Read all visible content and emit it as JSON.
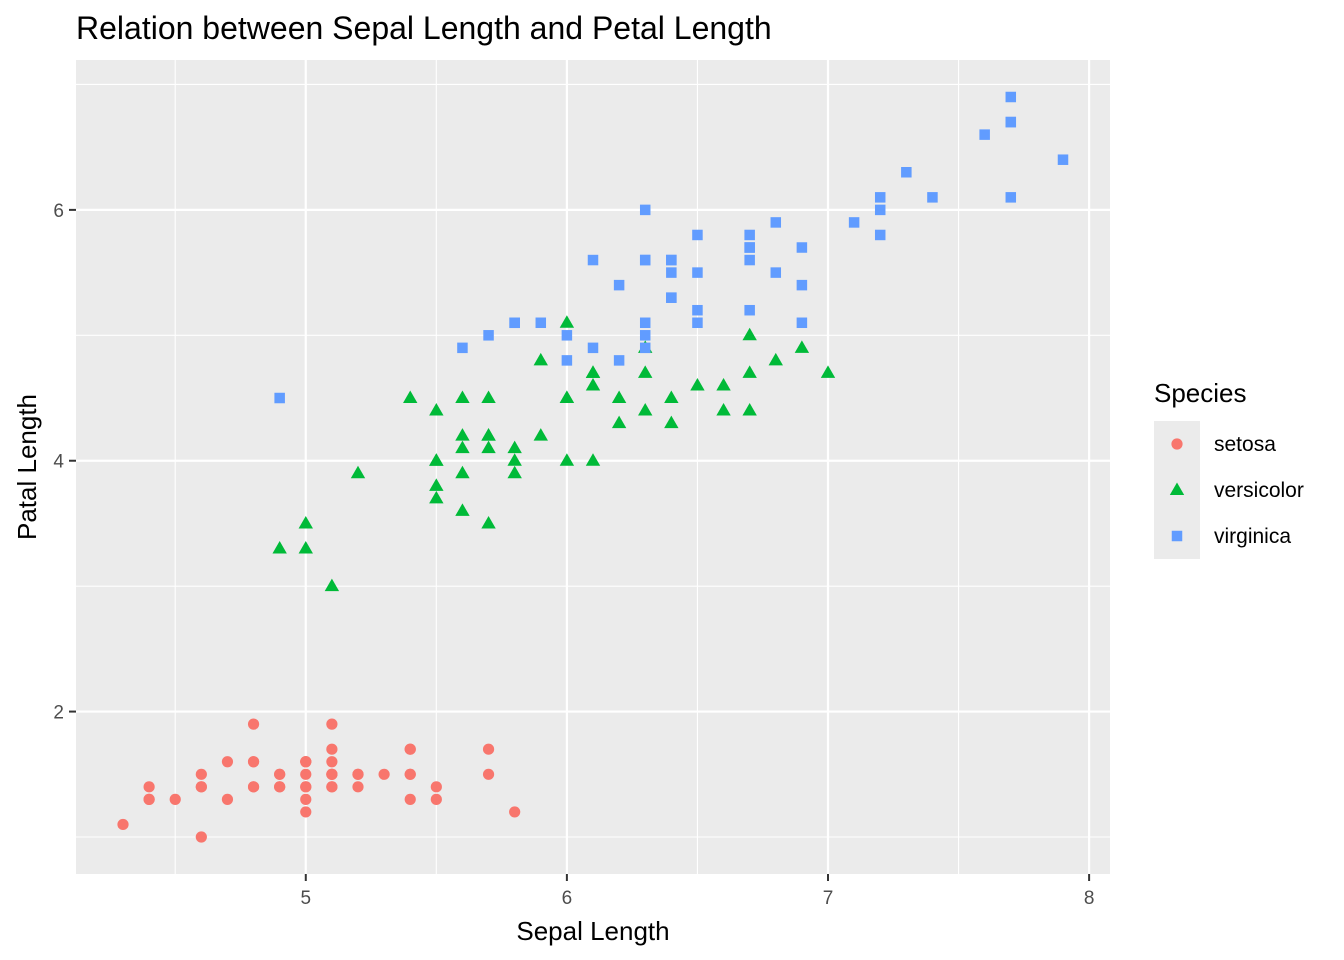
{
  "chart_data": {
    "type": "scatter",
    "title": "Relation between Sepal Length and Petal Length",
    "xlabel": "Sepal Length",
    "ylabel": "Patal Length",
    "xlim": [
      4.12,
      8.08
    ],
    "ylim": [
      0.705,
      7.195
    ],
    "x_ticks": [
      5,
      6,
      7,
      8
    ],
    "x_tick_labels": [
      "5",
      "6",
      "7",
      "8"
    ],
    "y_ticks": [
      2,
      4,
      6
    ],
    "y_tick_labels": [
      "2",
      "4",
      "6"
    ],
    "grid": true,
    "legend": {
      "title": "Species",
      "position": "right"
    },
    "series": [
      {
        "name": "setosa",
        "color": "#F8766D",
        "shape": "circle",
        "points": [
          [
            5.1,
            1.4
          ],
          [
            4.9,
            1.4
          ],
          [
            4.7,
            1.3
          ],
          [
            4.6,
            1.5
          ],
          [
            5.0,
            1.4
          ],
          [
            5.4,
            1.7
          ],
          [
            4.6,
            1.4
          ],
          [
            5.0,
            1.5
          ],
          [
            4.4,
            1.4
          ],
          [
            4.9,
            1.5
          ],
          [
            5.4,
            1.5
          ],
          [
            4.8,
            1.6
          ],
          [
            4.8,
            1.4
          ],
          [
            4.3,
            1.1
          ],
          [
            5.8,
            1.2
          ],
          [
            5.7,
            1.5
          ],
          [
            5.4,
            1.3
          ],
          [
            5.1,
            1.4
          ],
          [
            5.7,
            1.7
          ],
          [
            5.1,
            1.5
          ],
          [
            5.4,
            1.7
          ],
          [
            5.1,
            1.5
          ],
          [
            4.6,
            1.0
          ],
          [
            5.1,
            1.7
          ],
          [
            4.8,
            1.9
          ],
          [
            5.0,
            1.6
          ],
          [
            5.0,
            1.6
          ],
          [
            5.2,
            1.5
          ],
          [
            5.2,
            1.4
          ],
          [
            4.7,
            1.6
          ],
          [
            4.8,
            1.6
          ],
          [
            5.4,
            1.5
          ],
          [
            5.2,
            1.5
          ],
          [
            5.5,
            1.4
          ],
          [
            4.9,
            1.5
          ],
          [
            5.0,
            1.2
          ],
          [
            5.5,
            1.3
          ],
          [
            4.9,
            1.4
          ],
          [
            4.4,
            1.3
          ],
          [
            5.1,
            1.5
          ],
          [
            5.0,
            1.3
          ],
          [
            4.5,
            1.3
          ],
          [
            4.4,
            1.3
          ],
          [
            5.0,
            1.6
          ],
          [
            5.1,
            1.9
          ],
          [
            4.8,
            1.4
          ],
          [
            5.1,
            1.6
          ],
          [
            4.6,
            1.4
          ],
          [
            5.3,
            1.5
          ],
          [
            5.0,
            1.4
          ]
        ]
      },
      {
        "name": "versicolor",
        "color": "#00BA38",
        "shape": "triangle",
        "points": [
          [
            7.0,
            4.7
          ],
          [
            6.4,
            4.5
          ],
          [
            6.9,
            4.9
          ],
          [
            5.5,
            4.0
          ],
          [
            6.5,
            4.6
          ],
          [
            5.7,
            4.5
          ],
          [
            6.3,
            4.7
          ],
          [
            4.9,
            3.3
          ],
          [
            6.6,
            4.6
          ],
          [
            5.2,
            3.9
          ],
          [
            5.0,
            3.5
          ],
          [
            5.9,
            4.2
          ],
          [
            6.0,
            4.0
          ],
          [
            6.1,
            4.7
          ],
          [
            5.6,
            3.6
          ],
          [
            6.7,
            4.4
          ],
          [
            5.6,
            4.5
          ],
          [
            5.8,
            4.1
          ],
          [
            6.2,
            4.5
          ],
          [
            5.6,
            3.9
          ],
          [
            5.9,
            4.8
          ],
          [
            6.1,
            4.0
          ],
          [
            6.3,
            4.9
          ],
          [
            6.1,
            4.7
          ],
          [
            6.4,
            4.3
          ],
          [
            6.6,
            4.4
          ],
          [
            6.8,
            4.8
          ],
          [
            6.7,
            5.0
          ],
          [
            6.0,
            4.5
          ],
          [
            5.7,
            3.5
          ],
          [
            5.5,
            3.8
          ],
          [
            5.5,
            3.7
          ],
          [
            5.8,
            3.9
          ],
          [
            6.0,
            5.1
          ],
          [
            5.4,
            4.5
          ],
          [
            6.0,
            4.5
          ],
          [
            6.7,
            4.7
          ],
          [
            6.3,
            4.4
          ],
          [
            5.6,
            4.1
          ],
          [
            5.5,
            4.0
          ],
          [
            5.5,
            4.4
          ],
          [
            6.1,
            4.6
          ],
          [
            5.8,
            4.0
          ],
          [
            5.0,
            3.3
          ],
          [
            5.6,
            4.2
          ],
          [
            5.7,
            4.2
          ],
          [
            5.7,
            4.2
          ],
          [
            6.2,
            4.3
          ],
          [
            5.1,
            3.0
          ],
          [
            5.7,
            4.1
          ]
        ]
      },
      {
        "name": "virginica",
        "color": "#619CFF",
        "shape": "square",
        "points": [
          [
            6.3,
            6.0
          ],
          [
            5.8,
            5.1
          ],
          [
            7.1,
            5.9
          ],
          [
            6.3,
            5.6
          ],
          [
            6.5,
            5.8
          ],
          [
            7.6,
            6.6
          ],
          [
            4.9,
            4.5
          ],
          [
            7.3,
            6.3
          ],
          [
            6.7,
            5.8
          ],
          [
            7.2,
            6.1
          ],
          [
            6.5,
            5.1
          ],
          [
            6.4,
            5.3
          ],
          [
            6.8,
            5.5
          ],
          [
            5.7,
            5.0
          ],
          [
            5.8,
            5.1
          ],
          [
            6.4,
            5.3
          ],
          [
            6.5,
            5.5
          ],
          [
            7.7,
            6.7
          ],
          [
            7.7,
            6.9
          ],
          [
            6.0,
            5.0
          ],
          [
            6.9,
            5.7
          ],
          [
            5.6,
            4.9
          ],
          [
            7.7,
            6.7
          ],
          [
            6.3,
            4.9
          ],
          [
            6.7,
            5.7
          ],
          [
            7.2,
            6.0
          ],
          [
            6.2,
            4.8
          ],
          [
            6.1,
            4.9
          ],
          [
            6.4,
            5.6
          ],
          [
            7.2,
            5.8
          ],
          [
            7.4,
            6.1
          ],
          [
            7.9,
            6.4
          ],
          [
            6.4,
            5.6
          ],
          [
            6.3,
            5.1
          ],
          [
            6.1,
            5.6
          ],
          [
            7.7,
            6.1
          ],
          [
            6.3,
            5.6
          ],
          [
            6.4,
            5.5
          ],
          [
            6.0,
            4.8
          ],
          [
            6.9,
            5.4
          ],
          [
            6.7,
            5.6
          ],
          [
            6.9,
            5.1
          ],
          [
            5.8,
            5.1
          ],
          [
            6.8,
            5.9
          ],
          [
            6.7,
            5.7
          ],
          [
            6.7,
            5.2
          ],
          [
            6.3,
            5.0
          ],
          [
            6.5,
            5.2
          ],
          [
            6.2,
            5.4
          ],
          [
            5.9,
            5.1
          ]
        ]
      }
    ]
  }
}
